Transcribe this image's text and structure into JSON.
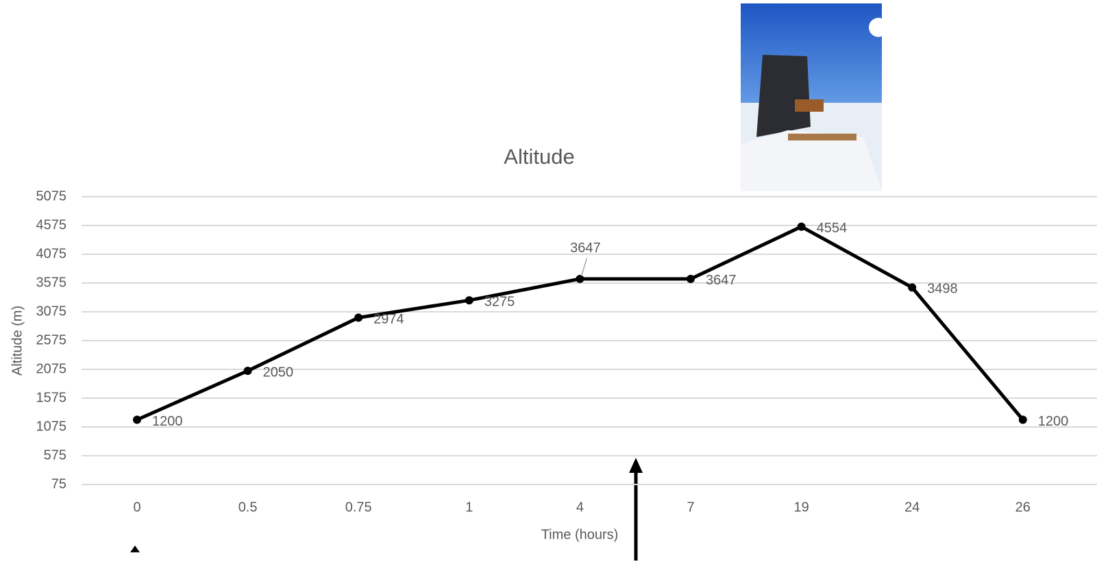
{
  "chart_data": {
    "type": "line",
    "title": "Altitude",
    "x_label": "Time (hours)",
    "y_label": "Altitude (m)",
    "categories": [
      "0",
      "0.5",
      "0.75",
      "1",
      "4",
      "7",
      "19",
      "24",
      "26"
    ],
    "values": [
      1200,
      2050,
      2974,
      3275,
      3647,
      3647,
      4554,
      3498,
      1200
    ],
    "color": "#000000",
    "ylim": [
      75,
      5075
    ],
    "yticks": [
      75,
      575,
      1075,
      1575,
      2075,
      2575,
      3075,
      3575,
      4075,
      4575,
      5075
    ],
    "grid": true,
    "data_labels": true
  }
}
